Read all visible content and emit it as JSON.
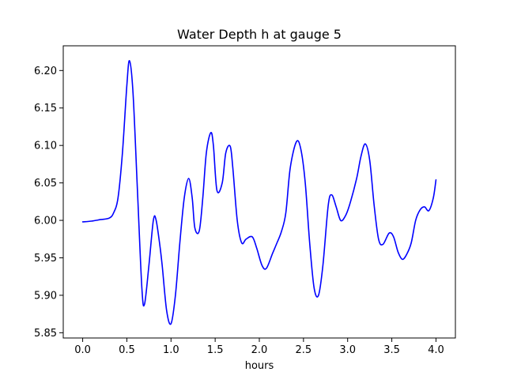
{
  "chart_data": {
    "type": "line",
    "title": "Water Depth h at gauge 5",
    "xlabel": "hours",
    "ylabel": "",
    "xlim": [
      -0.22,
      4.22
    ],
    "ylim": [
      5.843,
      6.233
    ],
    "xticks": [
      0.0,
      0.5,
      1.0,
      1.5,
      2.0,
      2.5,
      3.0,
      3.5,
      4.0
    ],
    "xtick_labels": [
      "0.0",
      "0.5",
      "1.0",
      "1.5",
      "2.0",
      "2.5",
      "3.0",
      "3.5",
      "4.0"
    ],
    "yticks": [
      5.85,
      5.9,
      5.95,
      6.0,
      6.05,
      6.1,
      6.15,
      6.2
    ],
    "ytick_labels": [
      "5.85",
      "5.90",
      "5.95",
      "6.00",
      "6.05",
      "6.10",
      "6.15",
      "6.20"
    ],
    "grid": false,
    "series": [
      {
        "color": "#0000ff",
        "x": [
          0.0,
          0.1,
          0.2,
          0.3,
          0.35,
          0.4,
          0.45,
          0.5,
          0.53,
          0.57,
          0.62,
          0.67,
          0.7,
          0.75,
          0.8,
          0.83,
          0.87,
          0.9,
          0.95,
          1.0,
          1.05,
          1.1,
          1.15,
          1.2,
          1.24,
          1.27,
          1.32,
          1.36,
          1.4,
          1.45,
          1.48,
          1.52,
          1.58,
          1.62,
          1.67,
          1.7,
          1.75,
          1.8,
          1.85,
          1.92,
          1.97,
          2.03,
          2.08,
          2.15,
          2.2,
          2.25,
          2.3,
          2.35,
          2.42,
          2.47,
          2.52,
          2.57,
          2.62,
          2.67,
          2.72,
          2.78,
          2.82,
          2.87,
          2.92,
          2.97,
          3.02,
          3.1,
          3.15,
          3.2,
          3.25,
          3.3,
          3.35,
          3.4,
          3.47,
          3.52,
          3.57,
          3.62,
          3.67,
          3.72,
          3.77,
          3.82,
          3.87,
          3.92,
          3.97,
          4.0
        ],
        "y": [
          5.998,
          5.999,
          6.001,
          6.003,
          6.01,
          6.03,
          6.09,
          6.18,
          6.213,
          6.17,
          6.04,
          5.91,
          5.888,
          5.94,
          6.0,
          6.001,
          5.97,
          5.94,
          5.88,
          5.862,
          5.9,
          5.97,
          6.03,
          6.056,
          6.03,
          5.99,
          5.986,
          6.03,
          6.09,
          6.117,
          6.1,
          6.04,
          6.05,
          6.09,
          6.099,
          6.07,
          6.0,
          5.97,
          5.975,
          5.978,
          5.963,
          5.94,
          5.936,
          5.956,
          5.97,
          5.985,
          6.01,
          6.07,
          6.105,
          6.095,
          6.05,
          5.97,
          5.91,
          5.9,
          5.94,
          6.02,
          6.034,
          6.018,
          6.0,
          6.005,
          6.02,
          6.055,
          6.085,
          6.102,
          6.08,
          6.02,
          5.975,
          5.968,
          5.983,
          5.978,
          5.958,
          5.948,
          5.955,
          5.97,
          6.0,
          6.014,
          6.018,
          6.013,
          6.03,
          6.054
        ]
      }
    ]
  }
}
